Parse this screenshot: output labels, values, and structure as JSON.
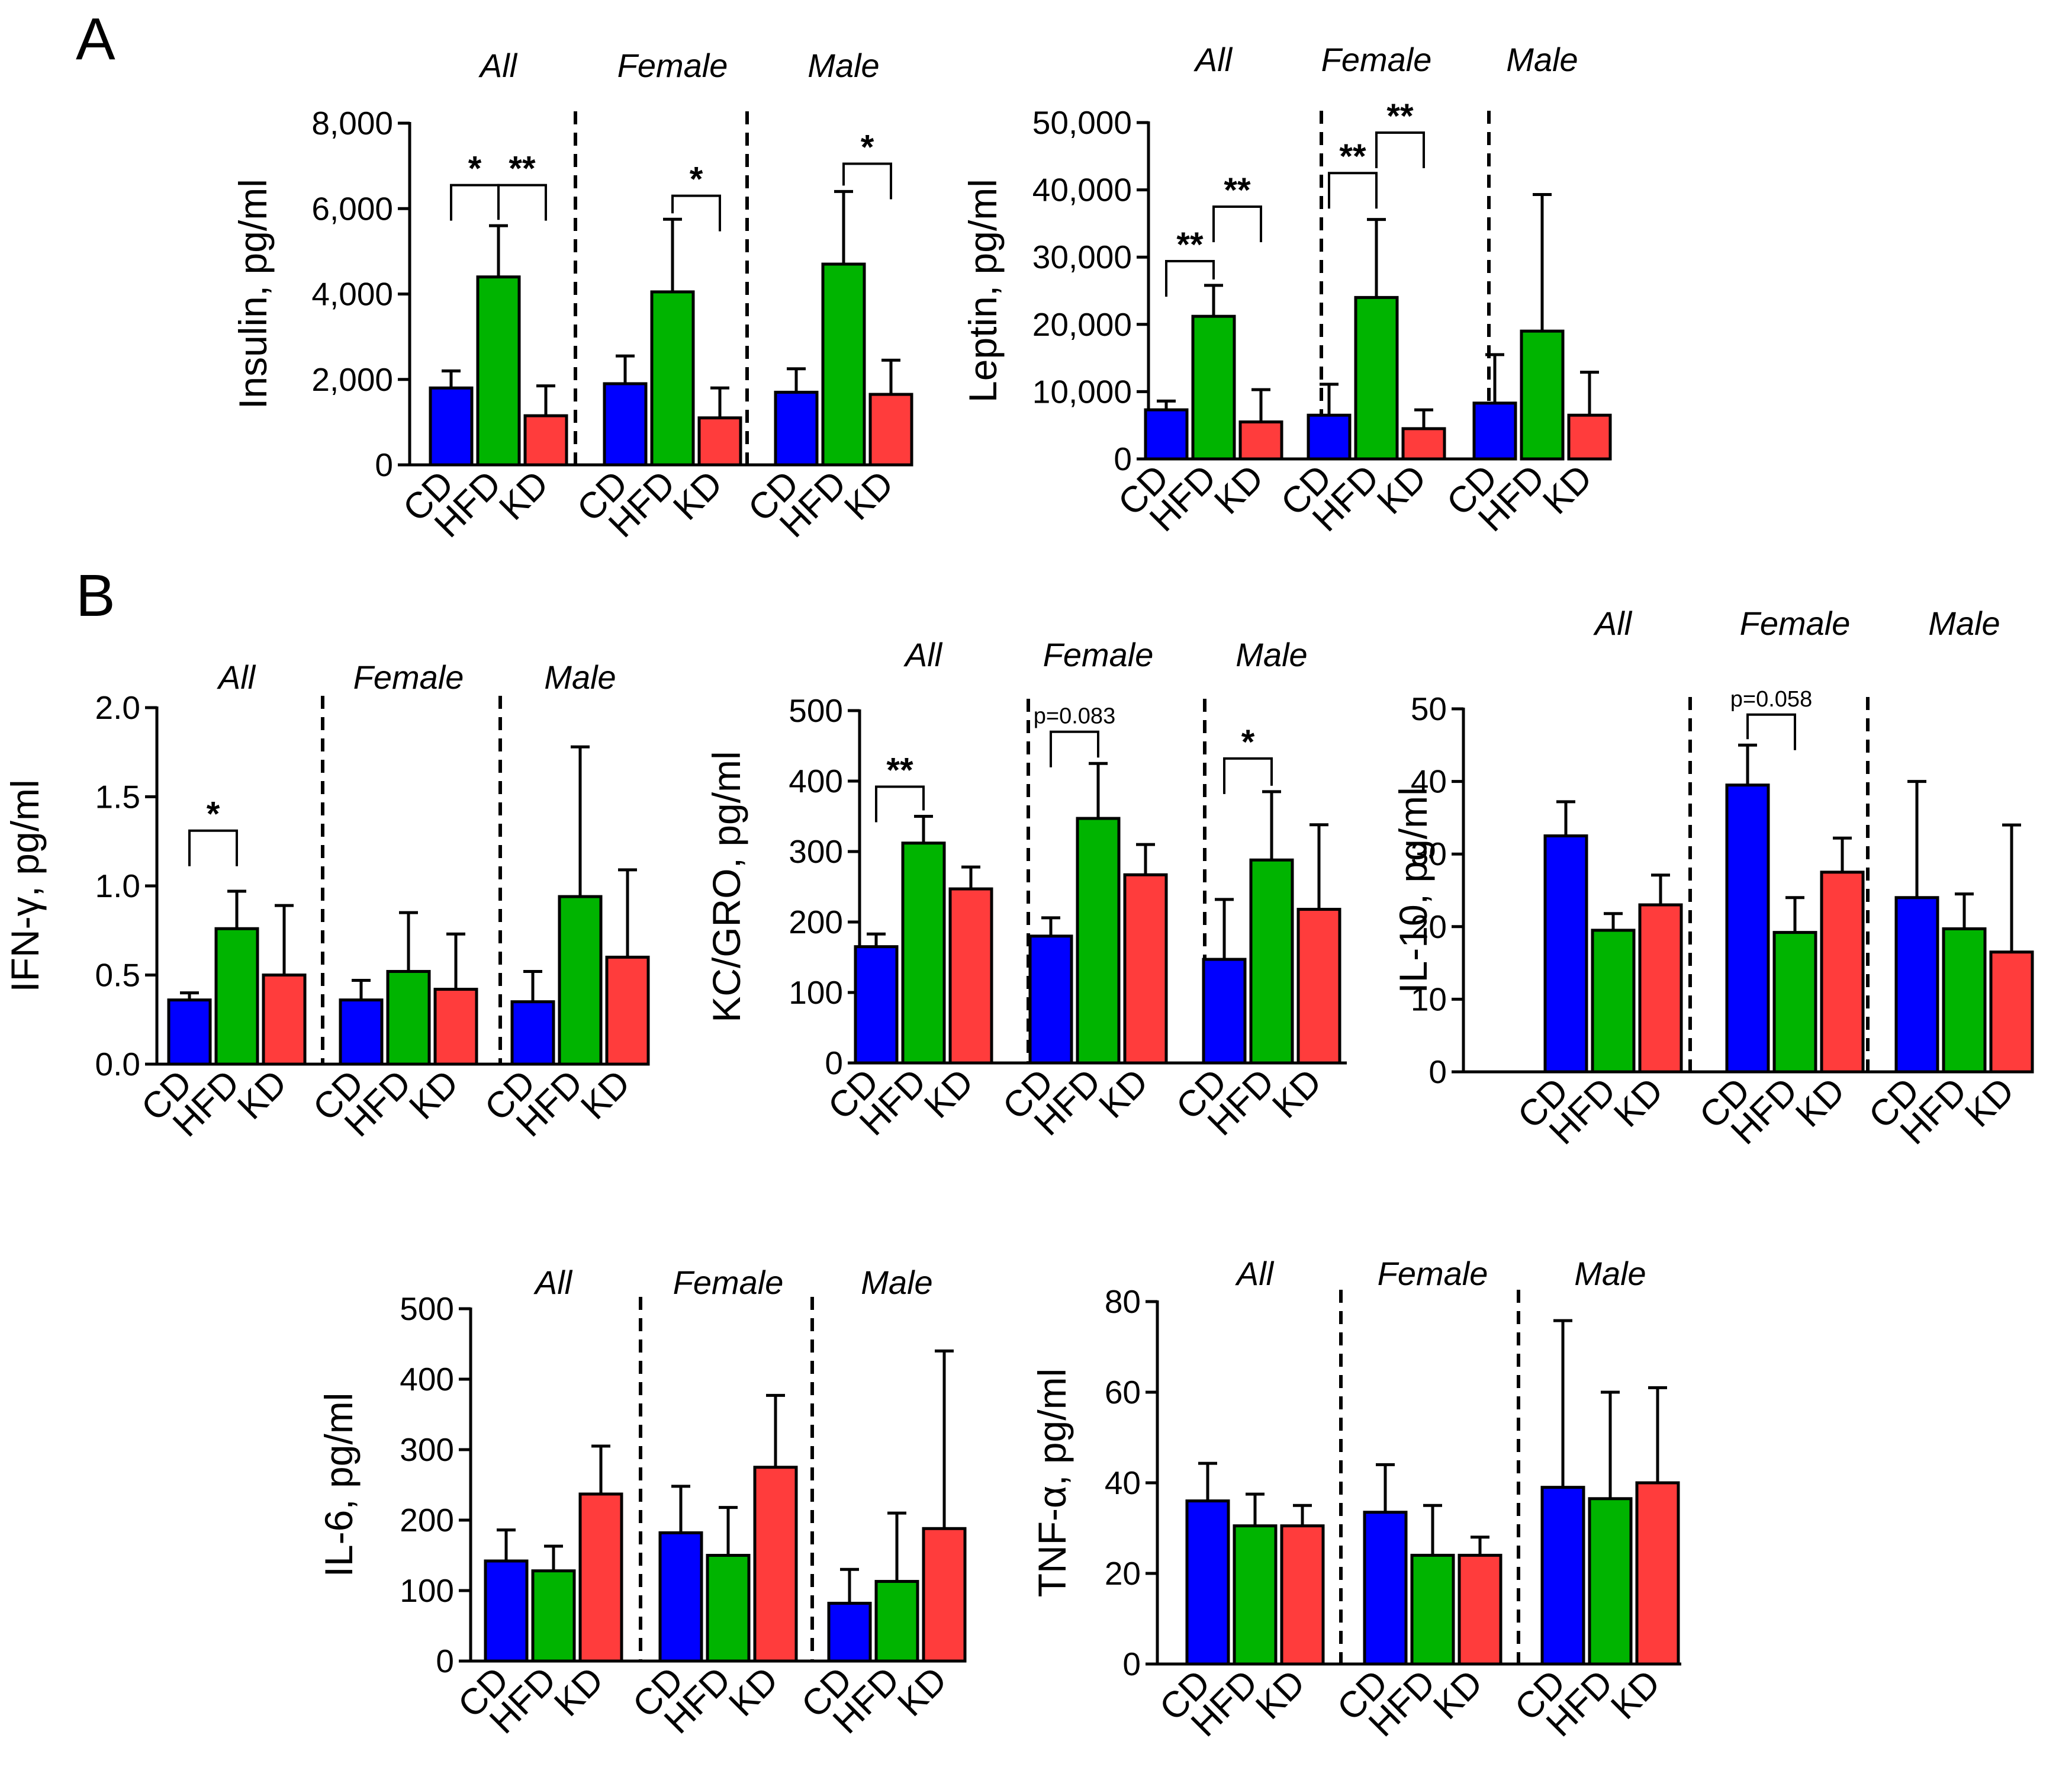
{
  "panels": {
    "a": "A",
    "b": "B"
  },
  "chart_data": [
    {
      "id": "insulin",
      "type": "bar",
      "ylabel": "Insulin, pg/ml",
      "ylim": [
        0,
        8000
      ],
      "yticks": [
        0,
        2000,
        4000,
        6000,
        8000
      ],
      "ytick_labels": [
        "0",
        "2,000",
        "4,000",
        "6,000",
        "8,000"
      ],
      "groups": [
        "All",
        "Female",
        "Male"
      ],
      "categories": [
        "CD",
        "HFD",
        "KD"
      ],
      "colors": [
        "#0000ff",
        "#00b400",
        "#ff3c3c"
      ],
      "values": [
        [
          1800,
          4400,
          1150
        ],
        [
          1900,
          4050,
          1100
        ],
        [
          1700,
          4700,
          1650
        ]
      ],
      "errors": [
        [
          400,
          1200,
          700
        ],
        [
          650,
          1700,
          700
        ],
        [
          550,
          1700,
          800
        ]
      ],
      "sig": [
        {
          "g": 0,
          "from": 0,
          "to": 1,
          "ybar": 6550,
          "label": "*"
        },
        {
          "g": 0,
          "from": 1,
          "to": 2,
          "ybar": 6550,
          "label": "**"
        },
        {
          "g": 1,
          "from": 1,
          "to": 2,
          "ybar": 6300,
          "label": "*"
        },
        {
          "g": 2,
          "from": 1,
          "to": 2,
          "ybar": 7050,
          "label": "*"
        }
      ]
    },
    {
      "id": "leptin",
      "type": "bar",
      "ylabel": "Leptin, pg/ml",
      "ylim": [
        0,
        50000
      ],
      "yticks": [
        0,
        10000,
        20000,
        30000,
        40000,
        50000
      ],
      "ytick_labels": [
        "0",
        "10,000",
        "20,000",
        "30,000",
        "40,000",
        "50,000"
      ],
      "groups": [
        "All",
        "Female",
        "Male"
      ],
      "categories": [
        "CD",
        "HFD",
        "KD"
      ],
      "colors": [
        "#0000ff",
        "#00b400",
        "#ff3c3c"
      ],
      "values": [
        [
          7300,
          21200,
          5500
        ],
        [
          6500,
          24000,
          4500
        ],
        [
          8300,
          19000,
          6500
        ]
      ],
      "errors": [
        [
          1300,
          4600,
          4800
        ],
        [
          4600,
          11600,
          2800
        ],
        [
          7200,
          20300,
          6400
        ]
      ],
      "sig": [
        {
          "g": 0,
          "from": 0,
          "to": 1,
          "ybar": 29400,
          "label": "**"
        },
        {
          "g": 0,
          "from": 1,
          "to": 2,
          "ybar": 37500,
          "label": "**"
        },
        {
          "g": 1,
          "from": 0,
          "to": 1,
          "ybar": 42500,
          "label": "**"
        },
        {
          "g": 1,
          "from": 1,
          "to": 2,
          "ybar": 48500,
          "label": "**"
        }
      ]
    },
    {
      "id": "ifng",
      "type": "bar",
      "ylabel": "IFN-γ, pg/ml",
      "ylim": [
        0,
        2
      ],
      "yticks": [
        0,
        0.5,
        1,
        1.5,
        2
      ],
      "ytick_labels": [
        "0.0",
        "0.5",
        "1.0",
        "1.5",
        "2.0"
      ],
      "groups": [
        "All",
        "Female",
        "Male"
      ],
      "categories": [
        "CD",
        "HFD",
        "KD"
      ],
      "colors": [
        "#0000ff",
        "#00b400",
        "#ff3c3c"
      ],
      "values": [
        [
          0.36,
          0.76,
          0.5
        ],
        [
          0.36,
          0.52,
          0.42
        ],
        [
          0.35,
          0.94,
          0.6
        ]
      ],
      "errors": [
        [
          0.04,
          0.21,
          0.39
        ],
        [
          0.11,
          0.33,
          0.31
        ],
        [
          0.17,
          0.84,
          0.49
        ]
      ],
      "sig": [
        {
          "g": 0,
          "from": 0,
          "to": 1,
          "ybar": 1.31,
          "label": "*"
        }
      ]
    },
    {
      "id": "kcgro",
      "type": "bar",
      "ylabel": "KC/GRO, pg/ml",
      "ylim": [
        0,
        500
      ],
      "yticks": [
        0,
        100,
        200,
        300,
        400,
        500
      ],
      "ytick_labels": [
        "0",
        "100",
        "200",
        "300",
        "400",
        "500"
      ],
      "groups": [
        "All",
        "Female",
        "Male"
      ],
      "categories": [
        "CD",
        "HFD",
        "KD"
      ],
      "colors": [
        "#0000ff",
        "#00b400",
        "#ff3c3c"
      ],
      "values": [
        [
          165,
          312,
          247
        ],
        [
          180,
          347,
          267
        ],
        [
          147,
          288,
          218
        ]
      ],
      "errors": [
        [
          18,
          38,
          31
        ],
        [
          26,
          78,
          43
        ],
        [
          85,
          97,
          120
        ]
      ],
      "sig": [
        {
          "g": 0,
          "from": 0,
          "to": 1,
          "ybar": 392,
          "label": "**"
        },
        {
          "g": 1,
          "from": 0,
          "to": 1,
          "ybar": 470,
          "label": "p=0.083"
        },
        {
          "g": 2,
          "from": 0,
          "to": 1,
          "ybar": 432,
          "label": "*"
        }
      ]
    },
    {
      "id": "il10",
      "type": "bar",
      "ylabel": "IL-10, pg/ml",
      "ylim": [
        0,
        50
      ],
      "yticks": [
        0,
        10,
        20,
        30,
        40,
        50
      ],
      "ytick_labels": [
        "0",
        "10",
        "20",
        "30",
        "40",
        "50"
      ],
      "groups": [
        "All",
        "Female",
        "Male"
      ],
      "categories": [
        "CD",
        "HFD",
        "KD"
      ],
      "colors": [
        "#0000ff",
        "#00b400",
        "#ff3c3c"
      ],
      "values": [
        [
          32.5,
          19.5,
          23
        ],
        [
          39.5,
          19.2,
          27.5
        ],
        [
          24,
          19.7,
          16.5
        ]
      ],
      "errors": [
        [
          4.7,
          2.3,
          4.1
        ],
        [
          5.5,
          4.8,
          4.7
        ],
        [
          16,
          4.8,
          17.5
        ]
      ],
      "sig": [
        {
          "g": 1,
          "from": 0,
          "to": 1,
          "ybar": 49.2,
          "label": "p=0.058"
        }
      ]
    },
    {
      "id": "il6",
      "type": "bar",
      "ylabel": "IL-6, pg/ml",
      "ylim": [
        0,
        500
      ],
      "yticks": [
        0,
        100,
        200,
        300,
        400,
        500
      ],
      "ytick_labels": [
        "0",
        "100",
        "200",
        "300",
        "400",
        "500"
      ],
      "groups": [
        "All",
        "Female",
        "Male"
      ],
      "categories": [
        "CD",
        "HFD",
        "KD"
      ],
      "colors": [
        "#0000ff",
        "#00b400",
        "#ff3c3c"
      ],
      "values": [
        [
          142,
          128,
          237
        ],
        [
          182,
          150,
          275
        ],
        [
          82,
          113,
          188
        ]
      ],
      "errors": [
        [
          44,
          35,
          68
        ],
        [
          66,
          68,
          102
        ],
        [
          48,
          97,
          252
        ]
      ],
      "sig": []
    },
    {
      "id": "tnfa",
      "type": "bar",
      "ylabel": "TNF-α, pg/ml",
      "ylim": [
        0,
        80
      ],
      "yticks": [
        0,
        20,
        40,
        60,
        80
      ],
      "ytick_labels": [
        "0",
        "20",
        "40",
        "60",
        "80"
      ],
      "groups": [
        "All",
        "Female",
        "Male"
      ],
      "categories": [
        "CD",
        "HFD",
        "KD"
      ],
      "colors": [
        "#0000ff",
        "#00b400",
        "#ff3c3c"
      ],
      "values": [
        [
          36,
          30.5,
          30.5
        ],
        [
          33.5,
          24,
          24
        ],
        [
          39,
          36.5,
          40
        ]
      ],
      "errors": [
        [
          8.3,
          7,
          4.5
        ],
        [
          10.5,
          11,
          4
        ],
        [
          36.8,
          23.5,
          21
        ]
      ],
      "sig": []
    }
  ]
}
